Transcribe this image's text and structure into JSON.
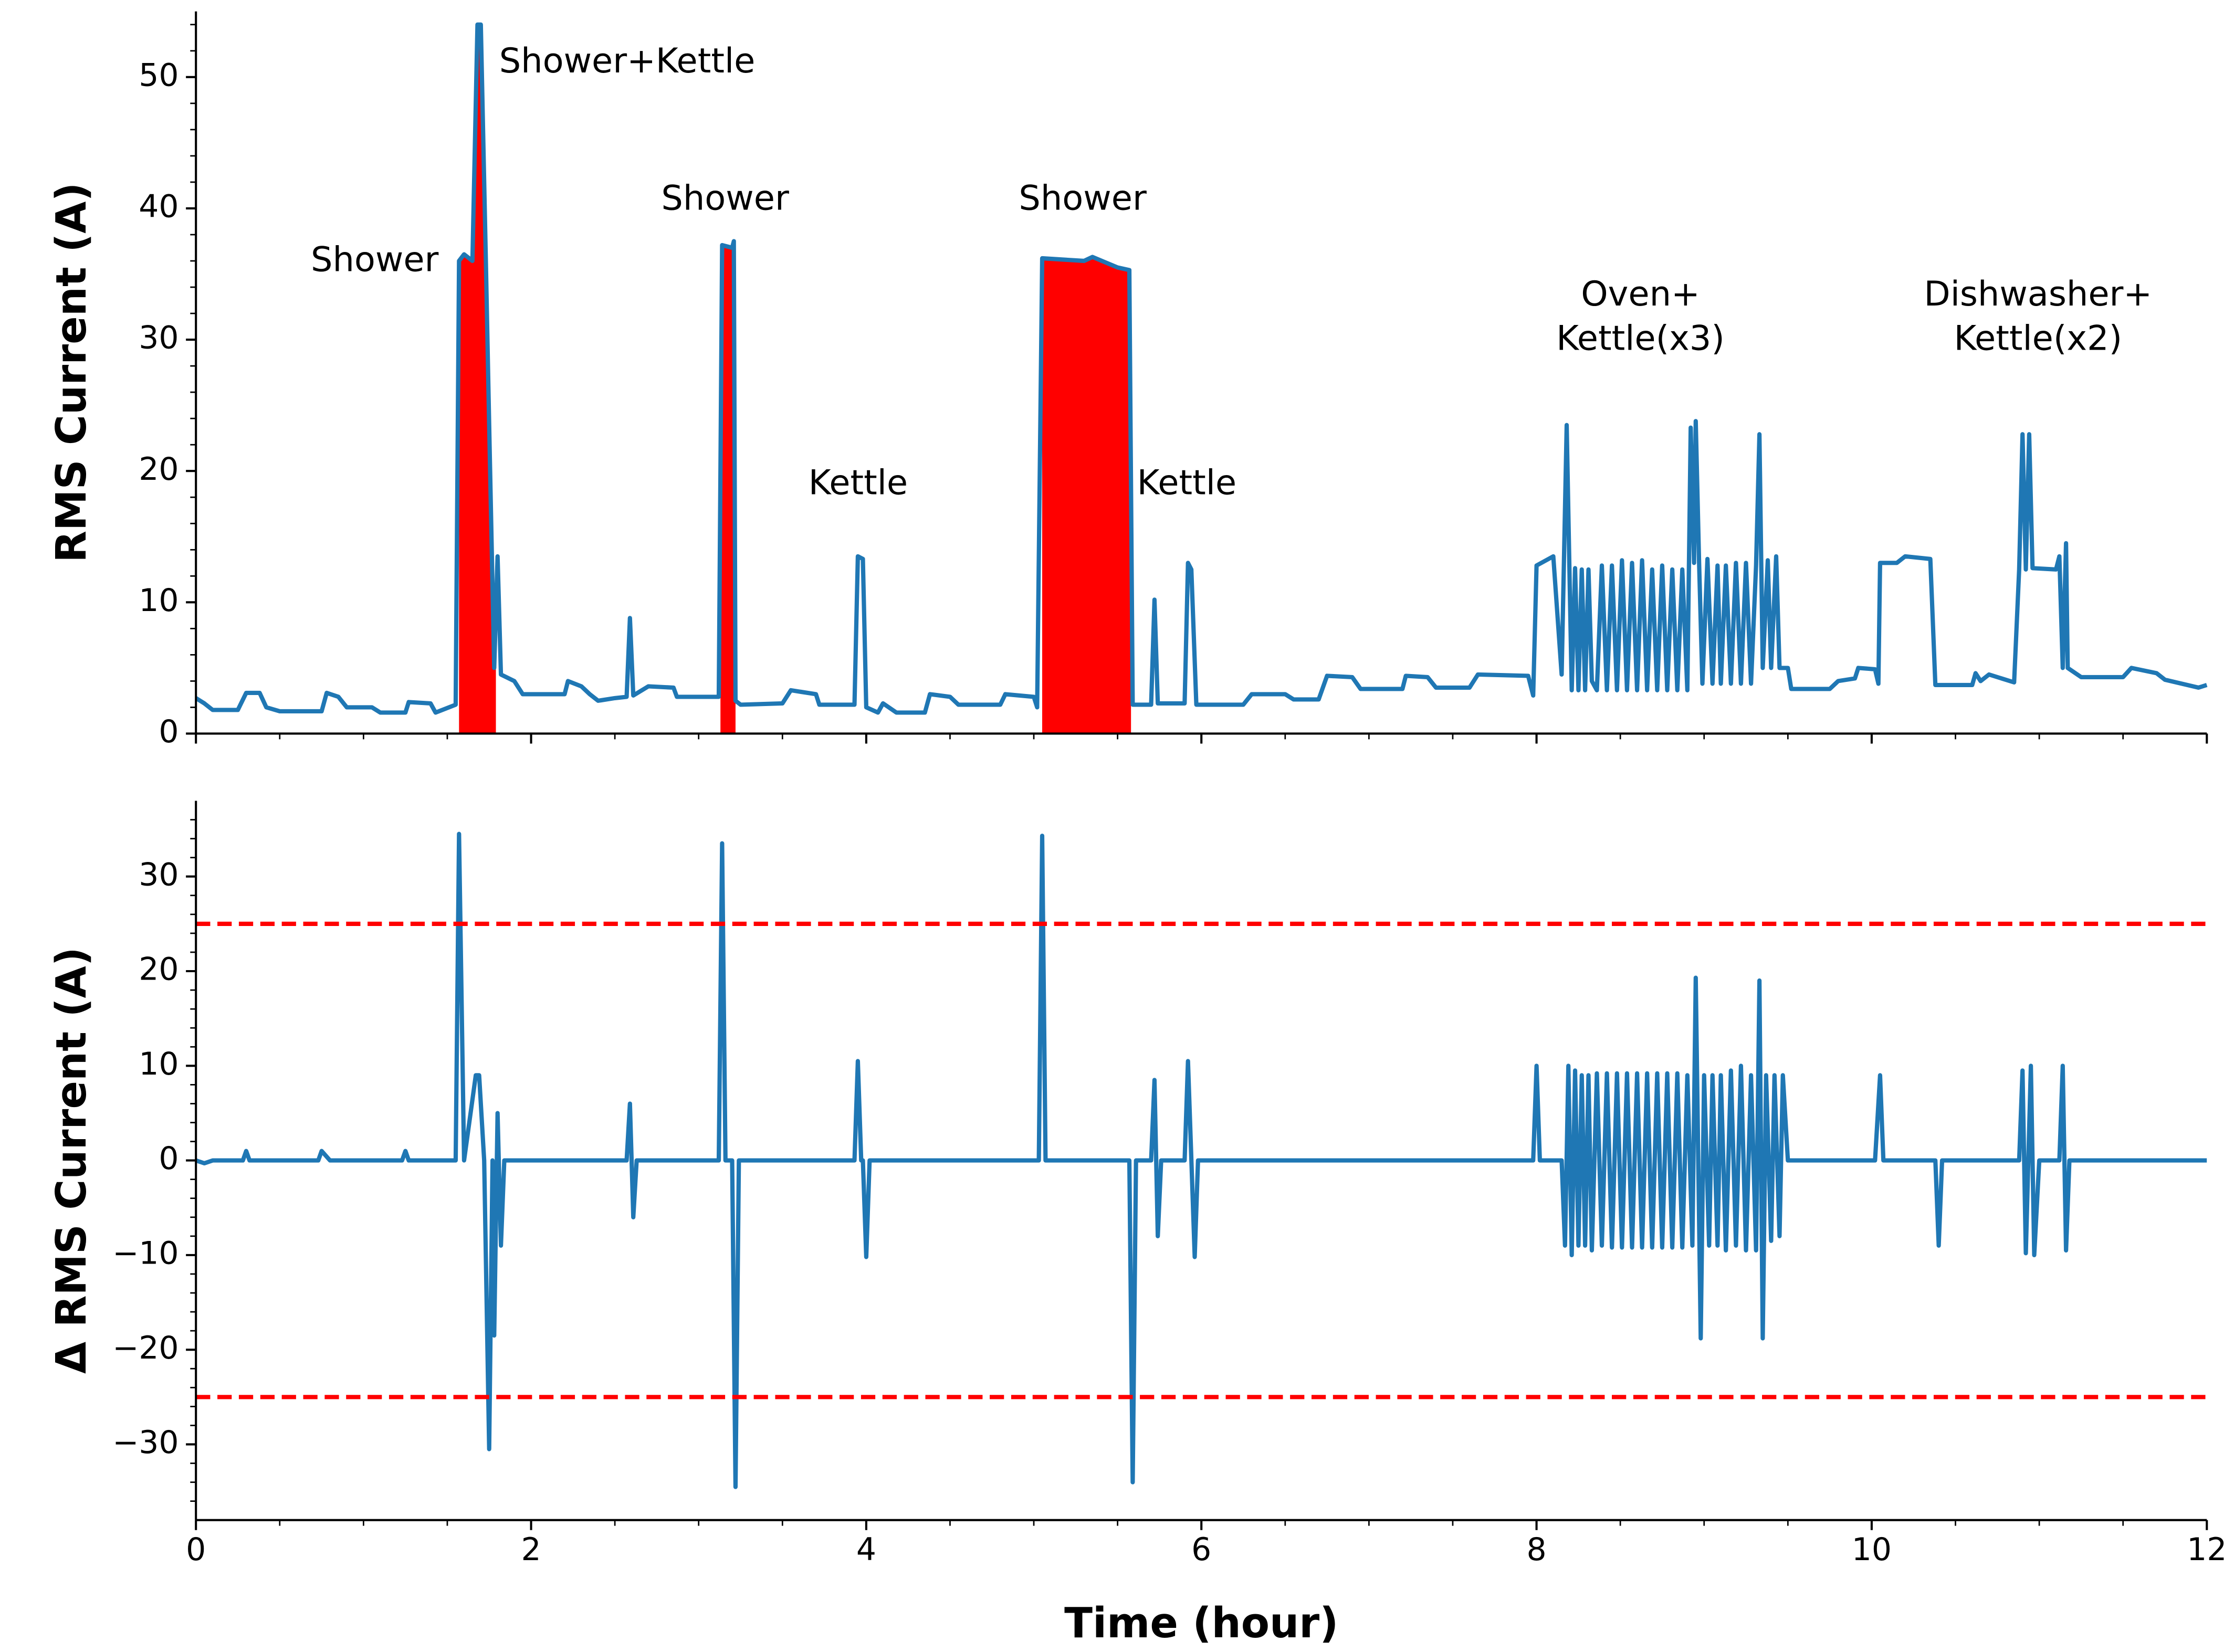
{
  "chart_data": [
    {
      "type": "line",
      "ylabel": "RMS Current (A)",
      "xlim": [
        0,
        12
      ],
      "xticks": [
        0,
        2,
        4,
        6,
        8,
        10,
        12
      ],
      "xminorticks": [
        0.5,
        1,
        1.5,
        2.5,
        3,
        3.5,
        4.5,
        5,
        5.5,
        6.5,
        7,
        7.5,
        8.5,
        9,
        9.5,
        10.5,
        11,
        11.5
      ],
      "ylim": [
        0,
        55
      ],
      "yticks": [
        0,
        10,
        20,
        30,
        40,
        50
      ],
      "yminorticks": [
        2,
        4,
        6,
        8,
        12,
        14,
        16,
        18,
        22,
        24,
        26,
        28,
        32,
        34,
        36,
        38,
        42,
        44,
        46,
        48,
        52,
        54
      ],
      "highlight_ranges": [
        [
          1.57,
          1.79
        ],
        [
          3.13,
          3.22
        ],
        [
          5.05,
          5.58
        ]
      ],
      "highlight_color": "#ff0000",
      "annotations": [
        [
          "Shower"
        ],
        [
          "Shower+Kettle"
        ],
        [
          "Shower"
        ],
        [
          "Kettle"
        ],
        [
          "Shower"
        ],
        [
          "Kettle"
        ],
        [
          "Oven+",
          "Kettle(x3)"
        ],
        [
          "Dishwasher+",
          "Kettle(x2)"
        ]
      ],
      "series": [
        {
          "color": "#1f77b4",
          "x": [
            0,
            0.05,
            0.1,
            0.25,
            0.3,
            0.38,
            0.42,
            0.5,
            0.75,
            0.78,
            0.85,
            0.9,
            1.05,
            1.1,
            1.25,
            1.27,
            1.4,
            1.43,
            1.55,
            1.57,
            1.6,
            1.65,
            1.68,
            1.7,
            1.73,
            1.75,
            1.78,
            1.8,
            1.82,
            1.9,
            1.95,
            2.2,
            2.22,
            2.3,
            2.35,
            2.4,
            2.5,
            2.57,
            2.59,
            2.61,
            2.7,
            2.85,
            2.87,
            3.12,
            3.14,
            3.2,
            3.21,
            3.22,
            3.25,
            3.5,
            3.55,
            3.7,
            3.72,
            3.93,
            3.95,
            3.98,
            4.0,
            4.07,
            4.1,
            4.18,
            4.35,
            4.38,
            4.5,
            4.55,
            4.8,
            4.83,
            5.0,
            5.02,
            5.05,
            5.3,
            5.35,
            5.5,
            5.57,
            5.59,
            5.7,
            5.72,
            5.74,
            5.9,
            5.92,
            5.94,
            5.97,
            6.25,
            6.3,
            6.5,
            6.55,
            6.7,
            6.75,
            6.9,
            6.95,
            7.2,
            7.22,
            7.35,
            7.4,
            7.6,
            7.65,
            7.95,
            7.98,
            8.0,
            8.1,
            8.15,
            8.18,
            8.21,
            8.23,
            8.25,
            8.27,
            8.29,
            8.31,
            8.33,
            8.36,
            8.39,
            8.42,
            8.45,
            8.48,
            8.51,
            8.54,
            8.57,
            8.6,
            8.63,
            8.66,
            8.69,
            8.72,
            8.75,
            8.78,
            8.81,
            8.84,
            8.87,
            8.9,
            8.92,
            8.94,
            8.95,
            8.97,
            8.99,
            9.02,
            9.05,
            9.08,
            9.1,
            9.13,
            9.16,
            9.19,
            9.22,
            9.25,
            9.28,
            9.31,
            9.33,
            9.35,
            9.38,
            9.4,
            9.43,
            9.45,
            9.5,
            9.52,
            9.75,
            9.8,
            9.9,
            9.92,
            10.02,
            10.04,
            10.05,
            10.15,
            10.2,
            10.35,
            10.38,
            10.6,
            10.62,
            10.65,
            10.7,
            10.85,
            10.88,
            10.9,
            10.92,
            10.94,
            10.96,
            11.1,
            11.12,
            11.14,
            11.16,
            11.17,
            11.25,
            11.5,
            11.55,
            11.7,
            11.75,
            11.95,
            12
          ],
          "values": [
            2.7,
            2.3,
            1.8,
            1.8,
            3.1,
            3.1,
            2.0,
            1.7,
            1.7,
            3.1,
            2.8,
            2.0,
            2.0,
            1.6,
            1.6,
            2.4,
            2.3,
            1.6,
            2.2,
            36,
            36.5,
            36,
            54,
            54,
            36,
            23.5,
            5,
            13.5,
            4.5,
            4,
            3,
            3,
            4,
            3.6,
            3,
            2.5,
            2.7,
            2.8,
            8.8,
            2.9,
            3.6,
            3.5,
            2.8,
            2.8,
            37.2,
            37,
            37.5,
            2.5,
            2.2,
            2.3,
            3.3,
            3.0,
            2.2,
            2.2,
            13.5,
            13.3,
            2.0,
            1.6,
            2.3,
            1.6,
            1.6,
            3.0,
            2.8,
            2.2,
            2.2,
            3.0,
            2.8,
            2.0,
            36.2,
            36,
            36.3,
            35.5,
            35.3,
            2.2,
            2.2,
            10.2,
            2.3,
            2.3,
            13.0,
            12.5,
            2.2,
            2.2,
            3.0,
            3.0,
            2.6,
            2.6,
            4.4,
            4.3,
            3.4,
            3.4,
            4.4,
            4.3,
            3.5,
            3.5,
            4.5,
            4.4,
            2.9,
            12.8,
            13.5,
            4.5,
            23.5,
            3.3,
            12.6,
            3.3,
            12.5,
            3.3,
            12.5,
            4,
            3.3,
            12.8,
            3.3,
            12.8,
            3.3,
            13.2,
            3.3,
            13,
            3.3,
            13.2,
            3.3,
            12.5,
            3.3,
            12.8,
            3.3,
            12.5,
            3.3,
            12.5,
            3.3,
            23.3,
            13,
            23.8,
            13,
            3.8,
            13.3,
            3.8,
            12.8,
            3.8,
            12.8,
            3.8,
            13,
            3.8,
            13,
            3.8,
            12.8,
            22.8,
            5,
            13.2,
            5,
            13.5,
            5,
            5,
            3.4,
            3.4,
            4,
            4.2,
            5,
            4.9,
            3.8,
            13,
            13,
            13.5,
            13.3,
            3.7,
            3.7,
            4.6,
            4,
            4.5,
            3.9,
            12.5,
            22.8,
            12.5,
            22.8,
            12.6,
            12.5,
            13.5,
            5,
            14.5,
            5,
            4.3,
            4.3,
            5,
            4.6,
            4.1,
            3.5,
            3.7
          ]
        }
      ]
    },
    {
      "type": "line",
      "xlabel": "Time (hour)",
      "ylabel": "Δ RMS Current (A)",
      "xlim": [
        0,
        12
      ],
      "xticks": [
        0,
        2,
        4,
        6,
        8,
        10,
        12
      ],
      "xminorticks": [
        0.5,
        1,
        1.5,
        2.5,
        3,
        3.5,
        4.5,
        5,
        5.5,
        6.5,
        7,
        7.5,
        8.5,
        9,
        9.5,
        10.5,
        11,
        11.5
      ],
      "ylim": [
        -38,
        38
      ],
      "yticks": [
        {
          "value": -30,
          "label": "−30"
        },
        {
          "value": -20,
          "label": "−20"
        },
        {
          "value": -10,
          "label": "−10"
        },
        0,
        10,
        20,
        30
      ],
      "yminorticks": [
        -36,
        -34,
        -32,
        -28,
        -26,
        -24,
        -22,
        -18,
        -16,
        -14,
        -12,
        -8,
        -6,
        -4,
        -2,
        2,
        4,
        6,
        8,
        12,
        14,
        16,
        18,
        22,
        24,
        26,
        28,
        32,
        34,
        36
      ],
      "hlines": [
        25,
        -25
      ],
      "hline_color": "#ff0000",
      "series": [
        {
          "color": "#1f77b4",
          "x": [
            0,
            0.05,
            0.1,
            0.28,
            0.3,
            0.32,
            0.73,
            0.75,
            0.8,
            1.23,
            1.25,
            1.27,
            1.55,
            1.57,
            1.6,
            1.67,
            1.69,
            1.72,
            1.75,
            1.77,
            1.78,
            1.8,
            1.82,
            1.84,
            2.57,
            2.59,
            2.61,
            2.63,
            3.12,
            3.14,
            3.16,
            3.2,
            3.22,
            3.24,
            3.93,
            3.95,
            3.97,
            3.98,
            4.0,
            4.02,
            5.03,
            5.05,
            5.07,
            5.57,
            5.59,
            5.61,
            5.7,
            5.72,
            5.74,
            5.76,
            5.9,
            5.92,
            5.96,
            5.98,
            7.98,
            8.0,
            8.02,
            8.15,
            8.17,
            8.19,
            8.21,
            8.23,
            8.25,
            8.27,
            8.29,
            8.31,
            8.33,
            8.36,
            8.39,
            8.42,
            8.45,
            8.48,
            8.51,
            8.54,
            8.57,
            8.6,
            8.63,
            8.66,
            8.69,
            8.72,
            8.75,
            8.78,
            8.81,
            8.84,
            8.87,
            8.9,
            8.93,
            8.95,
            8.98,
            9.0,
            9.03,
            9.05,
            9.08,
            9.1,
            9.13,
            9.16,
            9.19,
            9.22,
            9.25,
            9.28,
            9.31,
            9.33,
            9.35,
            9.37,
            9.4,
            9.42,
            9.45,
            9.47,
            9.5,
            10.02,
            10.05,
            10.07,
            10.38,
            10.4,
            10.42,
            10.88,
            10.9,
            10.92,
            10.95,
            10.97,
            11.0,
            11.12,
            11.14,
            11.16,
            11.18,
            12
          ],
          "values": [
            0,
            -0.3,
            0,
            0,
            1,
            0,
            0,
            1,
            0,
            0,
            1,
            0,
            0,
            34.5,
            0,
            9,
            9,
            0,
            -30.5,
            0,
            -18.5,
            5,
            -9,
            0,
            0,
            6,
            -6,
            0,
            0,
            33.5,
            0,
            0,
            -34.5,
            0,
            0,
            10.5,
            0,
            0,
            -10.2,
            0,
            0,
            34.3,
            0,
            0,
            -34,
            0,
            0,
            8.5,
            -8,
            0,
            0,
            10.5,
            -10.2,
            0,
            0,
            10,
            0,
            0,
            -9,
            10,
            -10,
            9.5,
            -9,
            9,
            -9,
            9,
            -9.5,
            9.2,
            -9,
            9.2,
            -9.2,
            9.2,
            -9.2,
            9.2,
            -9.2,
            9.2,
            -9.2,
            9.2,
            -9.2,
            9.2,
            -9.2,
            9.2,
            -9.2,
            9.2,
            -9.2,
            9,
            -9,
            19.3,
            -18.8,
            9,
            -9,
            9,
            -9,
            9,
            -9.5,
            9.5,
            -9,
            10,
            -9.5,
            9,
            -9.5,
            19,
            -18.8,
            9,
            -8.5,
            9,
            -8,
            9,
            0,
            0,
            9,
            0,
            0,
            -9,
            0,
            0,
            9.5,
            -9.8,
            10,
            -10,
            0,
            0,
            10,
            -9.5,
            0,
            0
          ]
        }
      ]
    }
  ]
}
